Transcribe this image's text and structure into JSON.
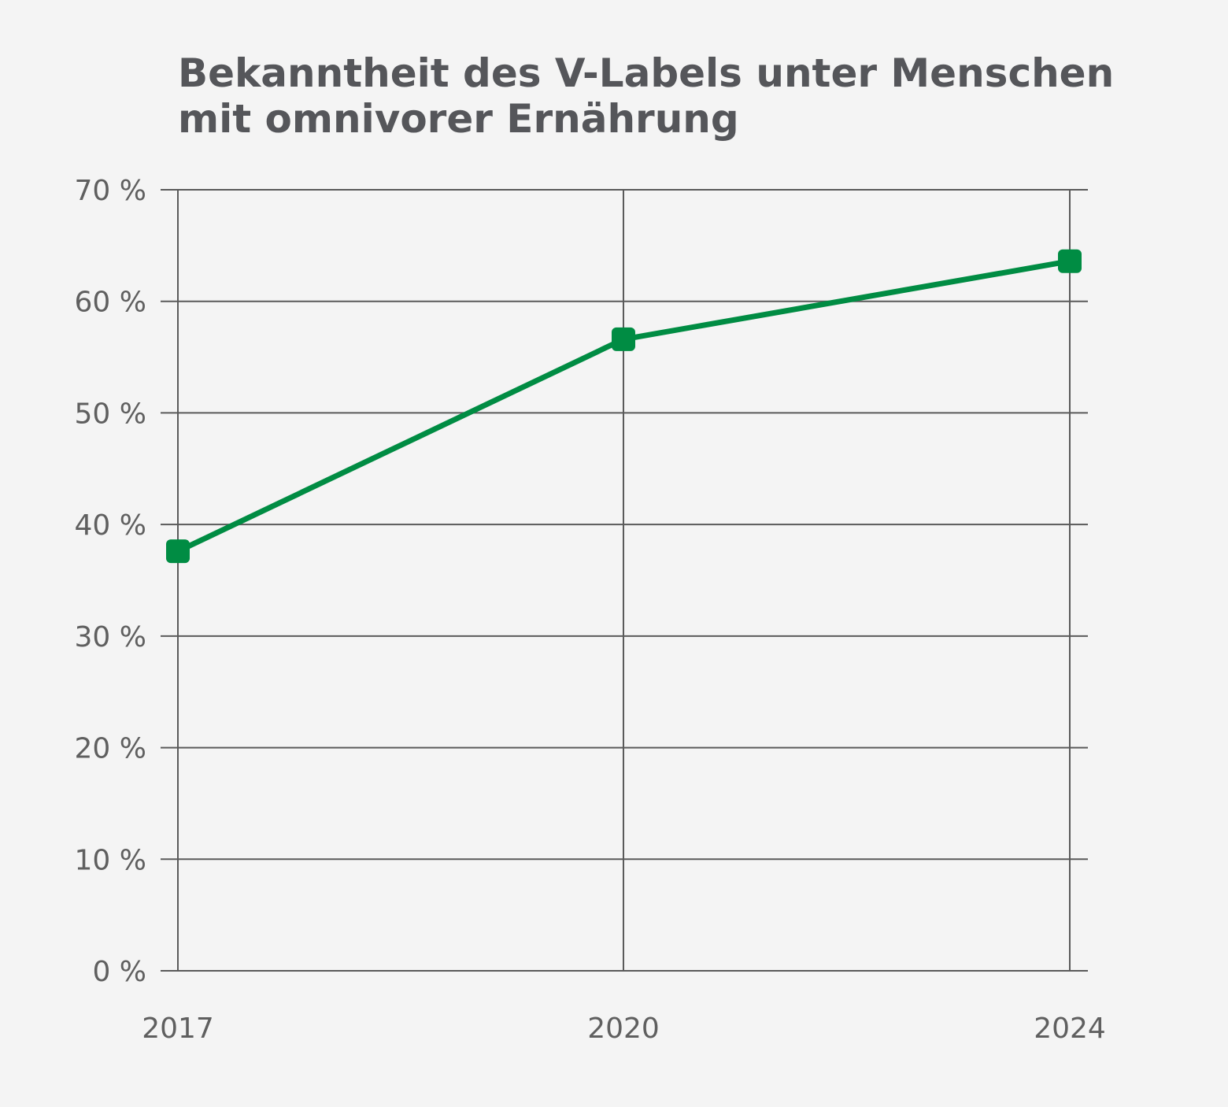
{
  "chart_data": {
    "type": "line",
    "title_lines": [
      "Bekanntheit des V-Labels unter Menschen",
      "mit omnivorer Ernährung"
    ],
    "categories": [
      "2017",
      "2020",
      "2024"
    ],
    "series": [
      {
        "values": [
          37.6,
          56.6,
          63.6
        ],
        "color": "#008c43",
        "marker": "square"
      }
    ],
    "ylim": [
      0,
      70
    ],
    "yticks": [
      0,
      10,
      20,
      30,
      40,
      50,
      60,
      70
    ],
    "ytick_labels": [
      "0 %",
      "10 %",
      "20 %",
      "30 %",
      "40 %",
      "50 %",
      "60 %",
      "70 %"
    ],
    "grid": true,
    "xlabel": "",
    "ylabel": ""
  }
}
